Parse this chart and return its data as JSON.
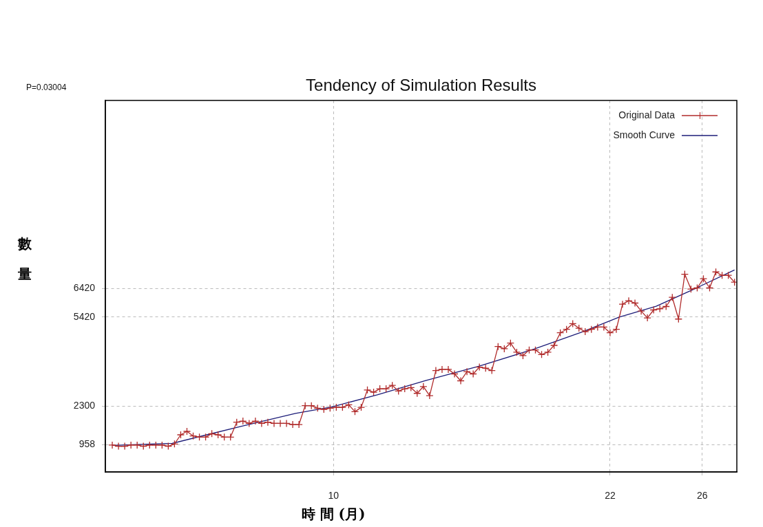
{
  "chart_data": {
    "type": "line",
    "title": "Tendency of Simulation Results",
    "xlabel": "時 間 (月)",
    "ylabel": "數量",
    "annotations": [
      "P=0.03004"
    ],
    "xlim": [
      0.1,
      27.5
    ],
    "xticks": [
      10,
      22,
      26
    ],
    "ylim": [
      0,
      13000
    ],
    "yticks": [
      958,
      2300,
      5420,
      6420
    ],
    "grid": true,
    "legend": "top right",
    "series": [
      {
        "name": "Original Data",
        "color": "#b02a2a",
        "marker": "cross",
        "x": [
          0.4,
          0.67,
          0.94,
          1.21,
          1.48,
          1.75,
          2.02,
          2.29,
          2.56,
          2.83,
          3.1,
          3.37,
          3.64,
          3.91,
          4.18,
          4.45,
          4.72,
          4.99,
          5.26,
          5.53,
          5.8,
          6.07,
          6.34,
          6.61,
          6.88,
          7.15,
          7.42,
          7.69,
          7.96,
          8.23,
          8.5,
          8.77,
          9.04,
          9.31,
          9.58,
          9.85,
          10.12,
          10.39,
          10.66,
          10.93,
          11.2,
          11.47,
          11.74,
          12.01,
          12.28,
          12.55,
          12.82,
          13.09,
          13.36,
          13.63,
          13.9,
          14.17,
          14.44,
          14.71,
          14.98,
          15.25,
          15.52,
          15.79,
          16.06,
          16.33,
          16.6,
          16.87,
          17.14,
          17.41,
          17.68,
          17.95,
          18.22,
          18.49,
          18.76,
          19.03,
          19.3,
          19.57,
          19.84,
          20.11,
          20.38,
          20.65,
          20.92,
          21.19,
          21.46,
          21.73,
          22,
          22.27,
          22.54,
          22.81,
          23.08,
          23.35,
          23.62,
          23.89,
          24.16,
          24.43,
          24.7,
          24.97,
          25.24,
          25.51,
          25.78,
          26.05,
          26.32,
          26.59,
          26.86,
          27.13,
          27.4
        ],
        "values": [
          940,
          900,
          900,
          940,
          940,
          900,
          940,
          940,
          940,
          900,
          980,
          1300,
          1420,
          1260,
          1220,
          1220,
          1340,
          1300,
          1220,
          1220,
          1740,
          1780,
          1700,
          1780,
          1700,
          1740,
          1700,
          1700,
          1700,
          1660,
          1660,
          2320,
          2320,
          2230,
          2190,
          2230,
          2260,
          2260,
          2350,
          2110,
          2260,
          2870,
          2790,
          2910,
          2910,
          3030,
          2830,
          2910,
          2950,
          2750,
          2990,
          2670,
          3550,
          3590,
          3590,
          3430,
          3190,
          3510,
          3430,
          3670,
          3630,
          3550,
          4390,
          4310,
          4510,
          4190,
          4070,
          4270,
          4270,
          4110,
          4190,
          4430,
          4870,
          4990,
          5190,
          5030,
          4910,
          4990,
          5070,
          5070,
          4870,
          4990,
          5870,
          5990,
          5910,
          5630,
          5390,
          5670,
          5710,
          5790,
          6110,
          5350,
          6920,
          6400,
          6440,
          6760,
          6440,
          7000,
          6880,
          6880,
          6640
        ]
      },
      {
        "name": "Smooth Curve",
        "color": "#1c1c78",
        "marker": "none",
        "x": [
          0.4,
          3,
          4.5,
          6,
          8.35,
          9.94,
          11.9,
          14,
          16.3,
          18.7,
          20.8,
          22.4,
          24,
          25.7,
          27.4
        ],
        "values": [
          930,
          1000,
          1300,
          1600,
          2050,
          2280,
          2700,
          3200,
          3700,
          4300,
          4900,
          5420,
          5800,
          6420,
          7070
        ]
      }
    ]
  }
}
